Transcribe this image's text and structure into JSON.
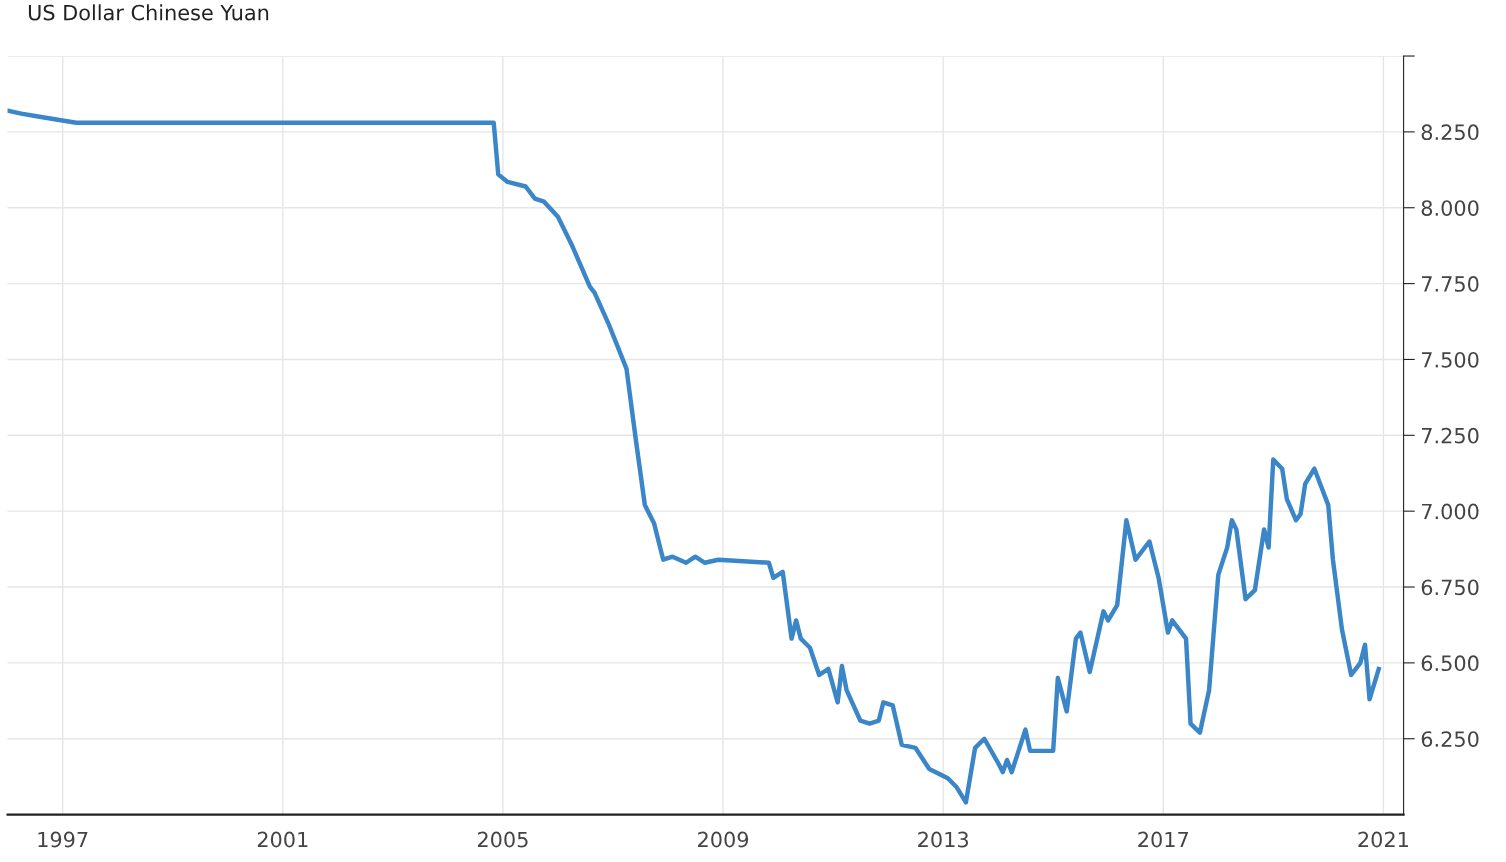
{
  "chart_data": {
    "type": "line",
    "title": "US Dollar Chinese Yuan",
    "x": [
      "1996-01",
      "1996-04",
      "1996-08",
      "1997-04",
      "2001-02",
      "2004-11",
      "2004-12",
      "2005-02",
      "2005-06",
      "2005-08",
      "2005-10",
      "2006-01",
      "2006-04",
      "2006-08",
      "2006-09",
      "2006-12",
      "2007-04",
      "2007-06",
      "2007-08",
      "2007-10",
      "2007-12",
      "2008-02",
      "2008-05",
      "2008-07",
      "2008-09",
      "2008-12",
      "2009-11",
      "2009-12",
      "2010-02",
      "2010-04",
      "2010-05",
      "2010-06",
      "2010-08",
      "2010-10",
      "2010-12",
      "2011-02",
      "2011-03",
      "2011-04",
      "2011-07",
      "2011-09",
      "2011-11",
      "2011-12",
      "2012-02",
      "2012-04",
      "2012-07",
      "2012-10",
      "2013-02",
      "2013-04",
      "2013-06",
      "2013-08",
      "2013-10",
      "2014-01",
      "2014-02",
      "2014-03",
      "2014-04",
      "2014-07",
      "2014-08",
      "2015-01",
      "2015-02",
      "2015-04",
      "2015-06",
      "2015-07",
      "2015-09",
      "2015-12",
      "2016-01",
      "2016-03",
      "2016-05",
      "2016-07",
      "2016-10",
      "2016-12",
      "2017-02",
      "2017-03",
      "2017-06",
      "2017-07",
      "2017-09",
      "2017-11",
      "2018-01",
      "2018-03",
      "2018-04",
      "2018-05",
      "2018-07",
      "2018-09",
      "2018-11",
      "2018-12",
      "2019-01",
      "2019-03",
      "2019-04",
      "2019-06",
      "2019-07",
      "2019-08",
      "2019-10",
      "2020-01",
      "2020-02",
      "2020-04",
      "2020-06",
      "2020-08",
      "2020-09",
      "2020-10",
      "2020-12"
    ],
    "series": [
      {
        "color": "#3a86c8",
        "values": [
          8.32,
          8.31,
          8.3,
          8.28,
          8.28,
          8.28,
          8.11,
          8.085,
          8.07,
          8.03,
          8.02,
          7.97,
          7.88,
          7.74,
          7.72,
          7.62,
          7.47,
          7.24,
          7.02,
          6.96,
          6.84,
          6.85,
          6.83,
          6.85,
          6.83,
          6.84,
          6.83,
          6.78,
          6.8,
          6.58,
          6.64,
          6.58,
          6.55,
          6.46,
          6.48,
          6.37,
          6.49,
          6.41,
          6.31,
          6.3,
          6.31,
          6.37,
          6.36,
          6.23,
          6.22,
          6.15,
          6.12,
          6.09,
          6.04,
          6.22,
          6.25,
          6.17,
          6.14,
          6.18,
          6.14,
          6.28,
          6.21,
          6.21,
          6.45,
          6.34,
          6.58,
          6.6,
          6.47,
          6.67,
          6.64,
          6.69,
          6.97,
          6.84,
          6.9,
          6.78,
          6.6,
          6.64,
          6.58,
          6.3,
          6.27,
          6.41,
          6.79,
          6.88,
          6.97,
          6.94,
          6.71,
          6.74,
          6.94,
          6.88,
          7.17,
          7.14,
          7.04,
          6.97,
          6.99,
          7.09,
          7.14,
          7.02,
          6.84,
          6.61,
          6.46,
          6.5,
          6.56,
          6.38,
          6.48
        ]
      }
    ],
    "xlim": [
      "1996-01-01",
      "2021-05-15"
    ],
    "xticks": [
      {
        "value": "1997-01-01",
        "label": "1997"
      },
      {
        "value": "2001-01-01",
        "label": "2001"
      },
      {
        "value": "2005-01-01",
        "label": "2005"
      },
      {
        "value": "2009-01-01",
        "label": "2009"
      },
      {
        "value": "2013-01-01",
        "label": "2013"
      },
      {
        "value": "2017-01-01",
        "label": "2017"
      },
      {
        "value": "2021-01-01",
        "label": "2021"
      }
    ],
    "ylim": [
      6.0,
      8.5
    ],
    "yticks": [
      {
        "value": 6.25,
        "label": "6.250"
      },
      {
        "value": 6.5,
        "label": "6.500"
      },
      {
        "value": 6.75,
        "label": "6.750"
      },
      {
        "value": 7.0,
        "label": "7.000"
      },
      {
        "value": 7.25,
        "label": "7.250"
      },
      {
        "value": 7.5,
        "label": "7.500"
      },
      {
        "value": 7.75,
        "label": "7.750"
      },
      {
        "value": 8.0,
        "label": "8.000"
      },
      {
        "value": 8.25,
        "label": "8.250"
      },
      {
        "value": 8.5,
        "label": null
      }
    ],
    "grid": true,
    "marker": "none",
    "line_style": "solid"
  }
}
